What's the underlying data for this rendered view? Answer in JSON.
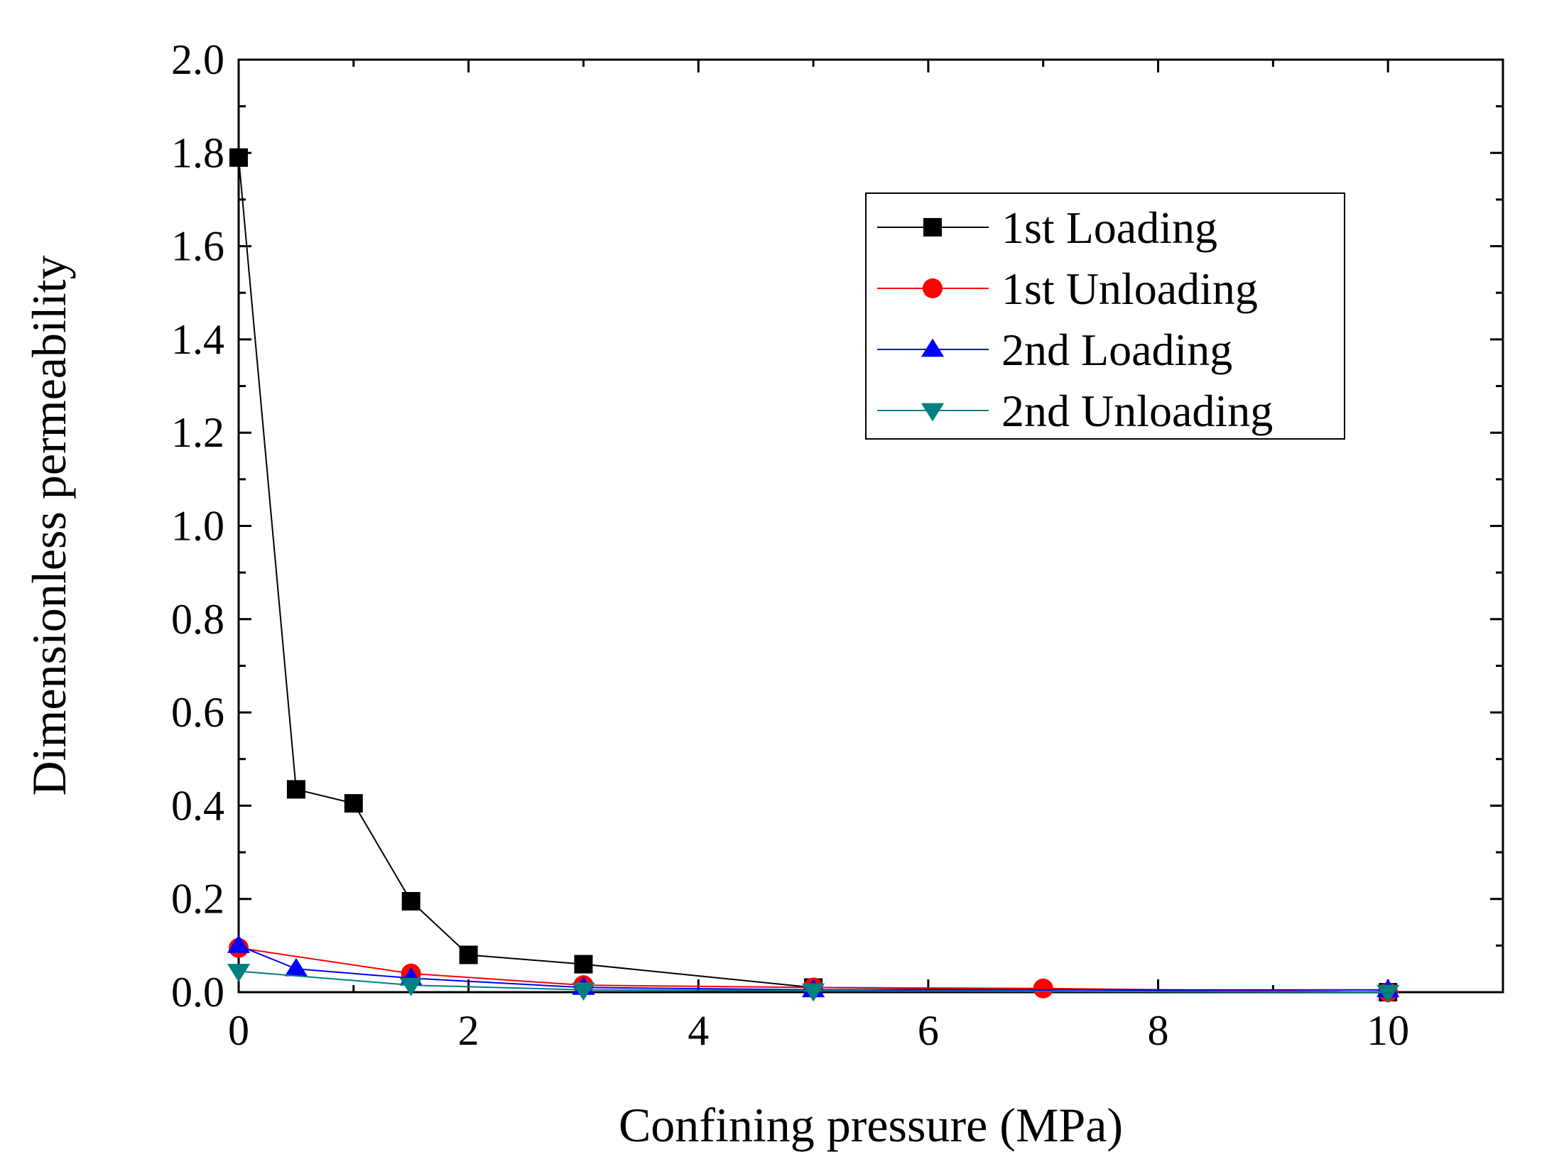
{
  "chart_data": {
    "type": "line",
    "title": "",
    "xlabel": "Confining pressure (MPa)",
    "ylabel": "Dimensionless permeability",
    "xlim": [
      0,
      11
    ],
    "ylim": [
      0,
      2.0
    ],
    "xticks": [
      0,
      2,
      4,
      6,
      8,
      10
    ],
    "xtick_labels": [
      "0",
      "2",
      "4",
      "6",
      "8",
      "10"
    ],
    "yticks": [
      0.0,
      0.2,
      0.4,
      0.6,
      0.8,
      1.0,
      1.2,
      1.4,
      1.6,
      1.8,
      2.0
    ],
    "ytick_labels": [
      "0.0",
      "0.2",
      "0.4",
      "0.6",
      "0.8",
      "1.0",
      "1.2",
      "1.4",
      "1.6",
      "1.8",
      "2.0"
    ],
    "grid": false,
    "legend_position": "top-right",
    "series": [
      {
        "name": "1st Loading",
        "color": "#000000",
        "marker": "square",
        "x": [
          0,
          0.5,
          1,
          1.5,
          2,
          3,
          5,
          10
        ],
        "y": [
          1.79,
          0.435,
          0.405,
          0.195,
          0.08,
          0.06,
          0.01,
          0.0
        ]
      },
      {
        "name": "1st Unloading",
        "color": "#ff0000",
        "marker": "circle",
        "x": [
          0,
          1.5,
          3,
          5,
          7,
          10
        ],
        "y": [
          0.095,
          0.04,
          0.015,
          0.01,
          0.008,
          0.0
        ]
      },
      {
        "name": "2nd Loading",
        "color": "#0000ff",
        "marker": "triangle-up",
        "x": [
          0,
          0.5,
          1.5,
          3,
          5,
          10
        ],
        "y": [
          0.1,
          0.05,
          0.03,
          0.01,
          0.005,
          0.005
        ]
      },
      {
        "name": "2nd Unloading",
        "color": "#008080",
        "marker": "triangle-down",
        "x": [
          0,
          1.5,
          3,
          5,
          10
        ],
        "y": [
          0.045,
          0.015,
          0.005,
          0.003,
          0.0
        ]
      }
    ]
  }
}
